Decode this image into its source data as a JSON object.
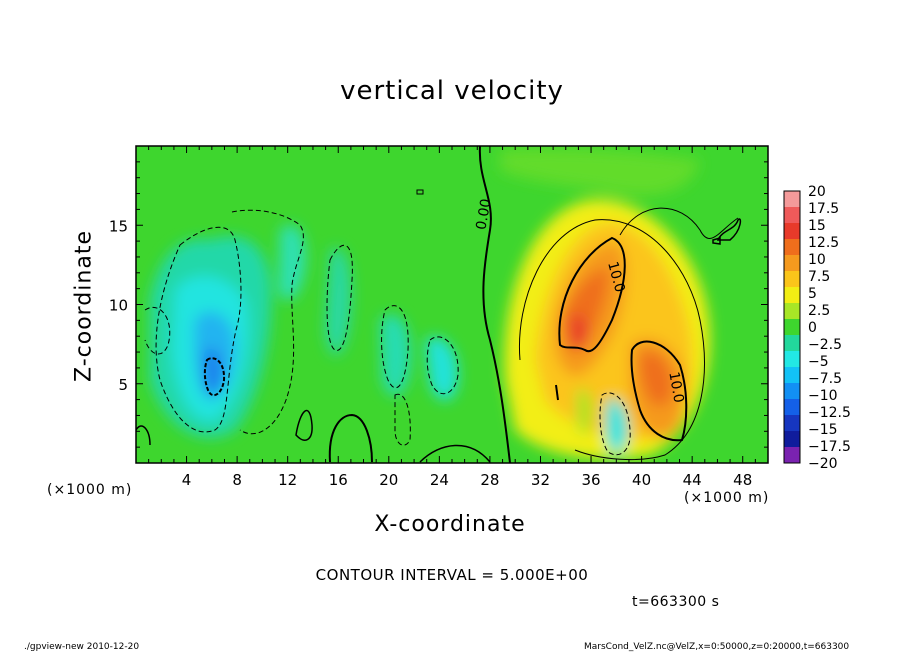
{
  "chart_data": {
    "type": "heatmap",
    "title": "vertical velocity",
    "xlabel": "X-coordinate",
    "ylabel": "Z-coordinate",
    "x_unit": "(×1000 m)",
    "y_unit": "(×1000 m)",
    "xlim": [
      0,
      50
    ],
    "ylim": [
      0,
      20
    ],
    "x_ticks": [
      "4",
      "8",
      "12",
      "16",
      "20",
      "24",
      "28",
      "32",
      "36",
      "40",
      "44",
      "48"
    ],
    "x_tick_values": [
      4,
      8,
      12,
      16,
      20,
      24,
      28,
      32,
      36,
      40,
      44,
      48
    ],
    "y_ticks": [
      "5",
      "10",
      "15"
    ],
    "y_tick_values": [
      5,
      10,
      15
    ],
    "colorbar": {
      "labels": [
        "20",
        "17.5",
        "15",
        "12.5",
        "10",
        "7.5",
        "5",
        "2.5",
        "0",
        "−2.5",
        "−5",
        "−7.5",
        "−10",
        "−12.5",
        "−15",
        "−17.5",
        "−20"
      ],
      "colors": [
        "#f49a9a",
        "#ef5a5a",
        "#e83a2a",
        "#ef6e1c",
        "#f59a1e",
        "#fbc51a",
        "#f2ee14",
        "#a8e626",
        "#3ed62e",
        "#22d89c",
        "#22e8e4",
        "#12c2f6",
        "#1290f4",
        "#1460e8",
        "#1636c0",
        "#101c9c",
        "#7a22b0"
      ]
    },
    "contour_labels": [
      "0.00",
      "10.0",
      "10.0"
    ],
    "contour_interval": "CONTOUR INTERVAL = 5.000E+00"
  },
  "annotations": {
    "time": "t=663300 s",
    "footer_left": "./gpview-new  2010-12-20",
    "footer_right": "MarsCond_VelZ.nc@VelZ,x=0:50000,z=0:20000,t=663300"
  }
}
